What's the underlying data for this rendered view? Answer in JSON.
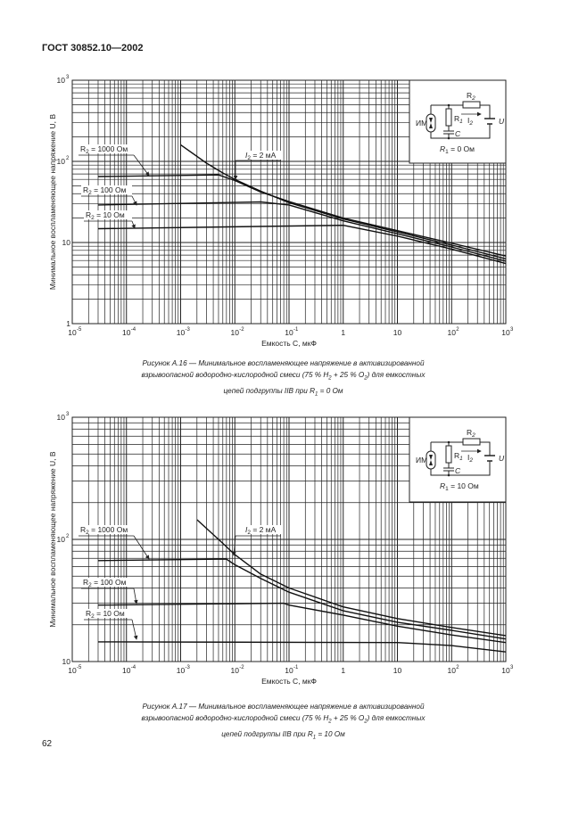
{
  "header": "ГОСТ 30852.10—2002",
  "page_number": "62",
  "captions": [
    {
      "line1": "Рисунок А.16 — Минимальное воспламеняющее напряжение в активизированной",
      "line2": [
        "взрывоопасной водородно-кислородной смеси (75 % H",
        "2",
        " + 25 % O",
        "2",
        ") для емкостных"
      ],
      "line3": [
        "цепей подгруппы IIB при R",
        "1",
        " = 0 Ом"
      ]
    },
    {
      "line1": "Рисунок А.17 — Минимальное воспламеняющее напряжение в активизированной",
      "line2": [
        "взрывоопасной водородно-кислородной смеси (75 % H",
        "2",
        " + 25 % O",
        "2",
        ") для емкостных"
      ],
      "line3": [
        "цепей подгруппы IIB при R",
        "1",
        " = 10 Ом"
      ]
    }
  ],
  "chart_data": [
    {
      "type": "line",
      "title": "",
      "xlabel": "Емкость C, мкФ",
      "ylabel": "Минимальное воспламеняющее напряжение U, В",
      "x_scale": "log",
      "y_scale": "log",
      "xlim": [
        1e-05,
        1000
      ],
      "ylim": [
        1,
        1000
      ],
      "grid": true,
      "x_tick_labels": [
        {
          "b": "10",
          "e": "-5"
        },
        {
          "b": "10",
          "e": "-4"
        },
        {
          "b": "10",
          "e": "-3"
        },
        {
          "b": "10",
          "e": "-2"
        },
        {
          "b": "10",
          "e": "-1"
        },
        {
          "b": "1",
          "e": ""
        },
        {
          "b": "10",
          "e": ""
        },
        {
          "b": "10",
          "e": "2"
        },
        {
          "b": "10",
          "e": "3"
        }
      ],
      "y_tick_labels": [
        {
          "b": "1",
          "e": ""
        },
        {
          "b": "10",
          "e": ""
        },
        {
          "b": "10",
          "e": "2"
        },
        {
          "b": "10",
          "e": "3"
        }
      ],
      "series": [
        {
          "name": "R2 = 1000 Ом",
          "points": [
            [
              3e-05,
              65
            ],
            [
              0.005,
              68
            ],
            [
              0.01,
              58
            ],
            [
              0.03,
              42
            ],
            [
              0.1,
              32
            ],
            [
              1,
              20
            ],
            [
              10,
              14
            ],
            [
              100,
              9.8
            ],
            [
              1000,
              6.8
            ]
          ]
        },
        {
          "name": "I2 = 2 мА",
          "points": [
            [
              0.001,
              160
            ],
            [
              0.003,
              95
            ],
            [
              0.006,
              72
            ],
            [
              0.01,
              60
            ],
            [
              0.03,
              43
            ],
            [
              0.1,
              31
            ],
            [
              1,
              19.5
            ],
            [
              10,
              13.5
            ],
            [
              100,
              9.3
            ],
            [
              1000,
              6.3
            ]
          ]
        },
        {
          "name": "R2 = 100 Ом",
          "points": [
            [
              3e-05,
              29
            ],
            [
              0.03,
              31.6
            ],
            [
              0.1,
              29
            ],
            [
              1,
              18.5
            ],
            [
              10,
              12.8
            ],
            [
              100,
              8.8
            ],
            [
              1000,
              5.9
            ]
          ]
        },
        {
          "name": "R2 = 10 Ом",
          "points": [
            [
              3e-05,
              14.8
            ],
            [
              1,
              16.3
            ],
            [
              10,
              12
            ],
            [
              100,
              8.3
            ],
            [
              1000,
              5.5
            ]
          ]
        }
      ],
      "labels": [
        {
          "main": "R",
          "sub": "2",
          "rest": " = 1000 Ом"
        },
        {
          "main": "R",
          "sub": "2",
          "rest": " = 100 Ом"
        },
        {
          "main": "R",
          "sub": "2",
          "rest": " = 10 Ом"
        },
        {
          "main": "I",
          "sub": "2",
          "rest": " = 2 мА"
        }
      ],
      "inset": {
        "device": "ИМ",
        "r2": [
          "R",
          "2"
        ],
        "r1": [
          "R",
          "1"
        ],
        "i2": [
          "I",
          "2"
        ],
        "c": "C",
        "u": "U",
        "condition": [
          "R",
          "1",
          " = 0 Ом"
        ]
      }
    },
    {
      "type": "line",
      "title": "",
      "xlabel": "Емкость C, мкФ",
      "ylabel": "Минимальное воспламеняющее напряжение U, В",
      "x_scale": "log",
      "y_scale": "log",
      "xlim": [
        1e-05,
        1000
      ],
      "ylim": [
        10,
        1000
      ],
      "grid": true,
      "x_tick_labels": [
        {
          "b": "10",
          "e": "-5"
        },
        {
          "b": "10",
          "e": "-4"
        },
        {
          "b": "10",
          "e": "-3"
        },
        {
          "b": "10",
          "e": "-2"
        },
        {
          "b": "10",
          "e": "-1"
        },
        {
          "b": "1",
          "e": ""
        },
        {
          "b": "10",
          "e": ""
        },
        {
          "b": "10",
          "e": "2"
        },
        {
          "b": "10",
          "e": "3"
        }
      ],
      "y_tick_labels": [
        {
          "b": "10",
          "e": ""
        },
        {
          "b": "10",
          "e": "2"
        },
        {
          "b": "10",
          "e": "3"
        }
      ],
      "series": [
        {
          "name": "R2 = 1000 Ом",
          "points": [
            [
              3e-05,
              67
            ],
            [
              0.007,
              69
            ],
            [
              0.01,
              62
            ],
            [
              0.03,
              48
            ],
            [
              0.1,
              37
            ],
            [
              1,
              26
            ],
            [
              10,
              21
            ],
            [
              100,
              18
            ],
            [
              1000,
              15.3
            ]
          ]
        },
        {
          "name": "I2 = 2 мА",
          "points": [
            [
              0.002,
              145
            ],
            [
              0.005,
              100
            ],
            [
              0.01,
              75
            ],
            [
              0.03,
              52
            ],
            [
              0.1,
              40
            ],
            [
              1,
              28
            ],
            [
              10,
              22.5
            ],
            [
              100,
              19
            ],
            [
              1000,
              16.3
            ]
          ]
        },
        {
          "name": "R2 = 100 Ом",
          "points": [
            [
              3e-05,
              29
            ],
            [
              0.08,
              30
            ],
            [
              0.1,
              29
            ],
            [
              1,
              24
            ],
            [
              10,
              19.5
            ],
            [
              100,
              16.5
            ],
            [
              1000,
              14.3
            ]
          ]
        },
        {
          "name": "R2 = 10 Ом",
          "points": [
            [
              3e-05,
              14.5
            ],
            [
              10,
              14.3
            ],
            [
              100,
              13.5
            ],
            [
              1000,
              12
            ]
          ]
        }
      ],
      "labels": [
        {
          "main": "R",
          "sub": "2",
          "rest": " = 1000 Ом"
        },
        {
          "main": "R",
          "sub": "2",
          "rest": " = 100 Ом"
        },
        {
          "main": "R",
          "sub": "2",
          "rest": " = 10 Ом"
        },
        {
          "main": "I",
          "sub": "2",
          "rest": " = 2 мА"
        }
      ],
      "inset": {
        "device": "ИМ",
        "r2": [
          "R",
          "2"
        ],
        "r1": [
          "R",
          "1"
        ],
        "i2": [
          "I",
          "2"
        ],
        "c": "C",
        "u": "U",
        "condition": [
          "R",
          "1",
          " = 10 Ом"
        ]
      }
    }
  ]
}
